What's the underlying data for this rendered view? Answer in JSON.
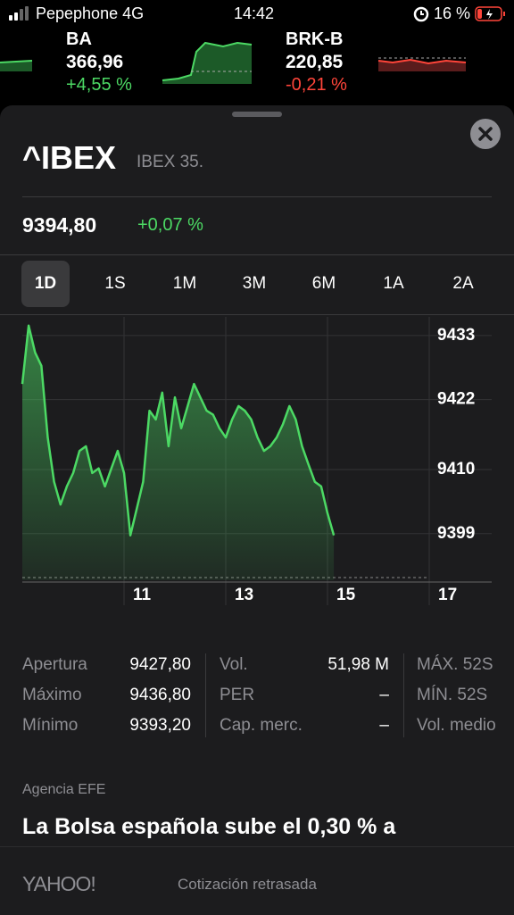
{
  "status_bar": {
    "carrier": "Pepephone 4G",
    "time": "14:42",
    "battery": "16 %"
  },
  "tickers": [
    {
      "symbol": "BA",
      "price": "366,96",
      "change": "+4,55 %"
    },
    {
      "symbol": "BRK-B",
      "price": "220,85",
      "change": "-0,21 %"
    }
  ],
  "header": {
    "symbol": "^IBEX",
    "name": "IBEX 35.",
    "price": "9394,80",
    "change": "+0,07 %"
  },
  "ranges": [
    "1D",
    "1S",
    "1M",
    "3M",
    "6M",
    "1A",
    "2A"
  ],
  "chart": {
    "type": "line",
    "x": [
      9,
      9.125,
      9.25,
      9.375,
      9.5,
      9.625,
      9.75,
      9.875,
      10,
      10.125,
      10.25,
      10.375,
      10.5,
      10.625,
      10.75,
      10.875,
      11,
      11.125,
      11.25,
      11.375,
      11.5,
      11.625,
      11.75,
      11.875,
      12,
      12.125,
      12.25,
      12.375,
      12.5,
      12.625,
      12.75,
      12.875,
      13,
      13.125,
      13.25,
      13.375,
      13.5,
      13.625,
      13.75,
      13.875,
      14,
      14.125,
      14.25,
      14.375,
      14.5,
      14.625,
      14.75,
      14.875,
      15,
      15.125
    ],
    "values": [
      9424.7,
      9434.7,
      9430.1,
      9427.8,
      9415.5,
      9407.9,
      9404.0,
      9407.1,
      9409.4,
      9413.2,
      9414.0,
      9409.4,
      9410.2,
      9407.1,
      9410.2,
      9413.2,
      9409.4,
      9398.7,
      9403.3,
      9407.9,
      9420.1,
      9418.6,
      9423.2,
      9414.0,
      9422.4,
      9417.1,
      9420.9,
      9424.7,
      9422.4,
      9420.1,
      9419.4,
      9417.1,
      9415.5,
      9418.6,
      9420.9,
      9420.1,
      9418.6,
      9415.5,
      9413.2,
      9414.0,
      9415.5,
      9417.8,
      9420.9,
      9418.6,
      9414.0,
      9410.9,
      9407.9,
      9407.1,
      9402.5,
      9398.7
    ],
    "xlim": [
      9,
      17
    ],
    "xticks": [
      11,
      13,
      15,
      17
    ],
    "ylim": [
      9391,
      9436.2
    ],
    "yticks": [
      9399,
      9410,
      9422,
      9433
    ],
    "color": "#4cd964",
    "grid": true
  },
  "stats": [
    [
      {
        "label": "Apertura",
        "value": "9427,80"
      },
      {
        "label": "Vol.",
        "value": "51,98 M"
      },
      {
        "label": "MÁX. 52S"
      }
    ],
    [
      {
        "label": "Máximo",
        "value": "9436,80"
      },
      {
        "label": "PER",
        "value": "–"
      },
      {
        "label": "MÍN. 52S"
      }
    ],
    [
      {
        "label": "Mínimo",
        "value": "9393,20"
      },
      {
        "label": "Cap. merc.",
        "value": "–"
      },
      {
        "label": "Vol. medio"
      }
    ]
  ],
  "news": {
    "source": "Agencia EFE",
    "headline": "La Bolsa española sube el 0,30 % a"
  },
  "footer": {
    "brand": "YAHOO!",
    "note": "Cotización retrasada"
  }
}
